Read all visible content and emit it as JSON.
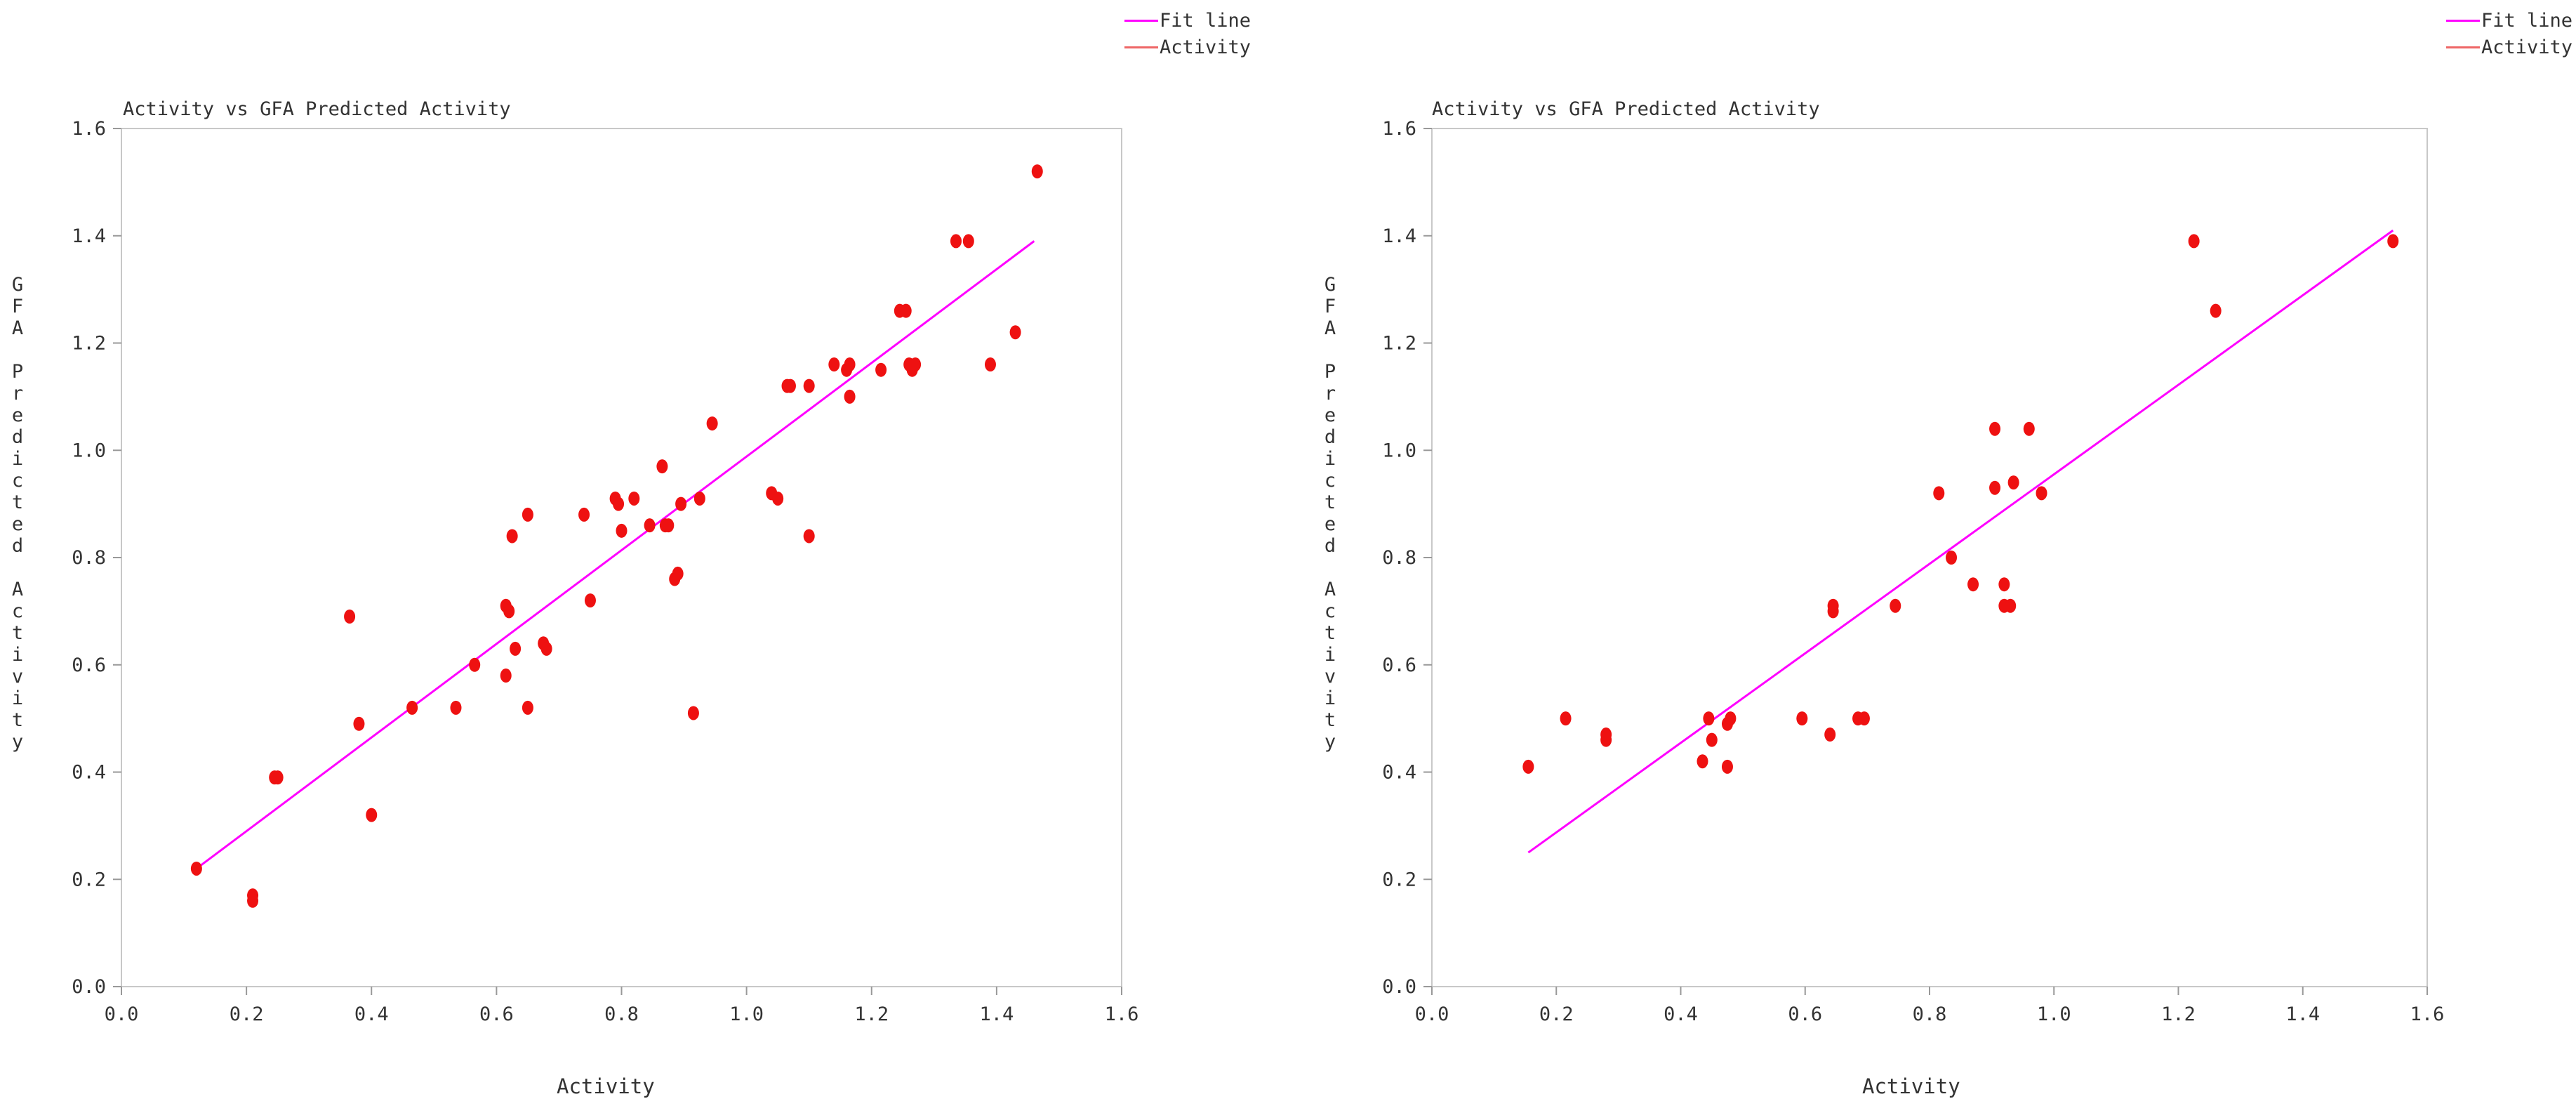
{
  "colors": {
    "fit": "#ff00ff",
    "points": "#ee1111",
    "axis": "#c8c8c8",
    "text": "#333333"
  },
  "legend": {
    "fit_label": "Fit line",
    "activity_label": "Activity"
  },
  "chart_data": [
    {
      "type": "scatter",
      "title": "Activity vs GFA Predicted Activity",
      "xlabel": "Activity",
      "ylabel": "GFA Predicted Activity",
      "xlim": [
        0,
        1.6
      ],
      "ylim": [
        0,
        1.6
      ],
      "xticks": [
        "0.0",
        "0.2",
        "0.4",
        "0.6",
        "0.8",
        "1.0",
        "1.2",
        "1.4",
        "1.6"
      ],
      "yticks": [
        "0.0",
        "0.2",
        "0.4",
        "0.6",
        "0.8",
        "1.0",
        "1.2",
        "1.4",
        "1.6"
      ],
      "legend_position": "top-right",
      "fit_line": {
        "x": [
          0.12,
          1.46
        ],
        "y": [
          0.22,
          1.39
        ]
      },
      "series": [
        {
          "name": "Activity",
          "points": [
            [
              0.12,
              0.22
            ],
            [
              0.21,
              0.17
            ],
            [
              0.21,
              0.16
            ],
            [
              0.245,
              0.39
            ],
            [
              0.25,
              0.39
            ],
            [
              0.365,
              0.69
            ],
            [
              0.38,
              0.49
            ],
            [
              0.4,
              0.32
            ],
            [
              0.465,
              0.52
            ],
            [
              0.535,
              0.52
            ],
            [
              0.565,
              0.6
            ],
            [
              0.615,
              0.58
            ],
            [
              0.615,
              0.71
            ],
            [
              0.62,
              0.7
            ],
            [
              0.625,
              0.84
            ],
            [
              0.63,
              0.63
            ],
            [
              0.65,
              0.52
            ],
            [
              0.65,
              0.88
            ],
            [
              0.675,
              0.64
            ],
            [
              0.68,
              0.63
            ],
            [
              0.74,
              0.88
            ],
            [
              0.75,
              0.72
            ],
            [
              0.79,
              0.91
            ],
            [
              0.795,
              0.9
            ],
            [
              0.8,
              0.85
            ],
            [
              0.82,
              0.91
            ],
            [
              0.845,
              0.86
            ],
            [
              0.865,
              0.97
            ],
            [
              0.87,
              0.86
            ],
            [
              0.875,
              0.86
            ],
            [
              0.885,
              0.76
            ],
            [
              0.89,
              0.77
            ],
            [
              0.895,
              0.9
            ],
            [
              0.915,
              0.51
            ],
            [
              0.925,
              0.91
            ],
            [
              0.945,
              1.05
            ],
            [
              1.04,
              0.92
            ],
            [
              1.05,
              0.91
            ],
            [
              1.065,
              1.12
            ],
            [
              1.07,
              1.12
            ],
            [
              1.1,
              0.84
            ],
            [
              1.1,
              1.12
            ],
            [
              1.14,
              1.16
            ],
            [
              1.16,
              1.15
            ],
            [
              1.165,
              1.1
            ],
            [
              1.165,
              1.16
            ],
            [
              1.215,
              1.15
            ],
            [
              1.245,
              1.26
            ],
            [
              1.255,
              1.26
            ],
            [
              1.26,
              1.16
            ],
            [
              1.265,
              1.15
            ],
            [
              1.27,
              1.16
            ],
            [
              1.335,
              1.39
            ],
            [
              1.355,
              1.39
            ],
            [
              1.39,
              1.16
            ],
            [
              1.43,
              1.22
            ],
            [
              1.465,
              1.52
            ]
          ]
        }
      ]
    },
    {
      "type": "scatter",
      "title": "Activity vs GFA Predicted Activity",
      "xlabel": "Activity",
      "ylabel": "GFA Predicted Activity",
      "xlim": [
        0,
        1.6
      ],
      "ylim": [
        0,
        1.6
      ],
      "xticks": [
        "0.0",
        "0.2",
        "0.4",
        "0.6",
        "0.8",
        "1.0",
        "1.2",
        "1.4",
        "1.6"
      ],
      "yticks": [
        "0.0",
        "0.2",
        "0.4",
        "0.6",
        "0.8",
        "1.0",
        "1.2",
        "1.4",
        "1.6"
      ],
      "legend_position": "top-right",
      "fit_line": {
        "x": [
          0.155,
          1.545
        ],
        "y": [
          0.25,
          1.41
        ]
      },
      "series": [
        {
          "name": "Activity",
          "points": [
            [
              0.155,
              0.41
            ],
            [
              0.215,
              0.5
            ],
            [
              0.28,
              0.46
            ],
            [
              0.28,
              0.47
            ],
            [
              0.435,
              0.42
            ],
            [
              0.445,
              0.5
            ],
            [
              0.45,
              0.46
            ],
            [
              0.475,
              0.41
            ],
            [
              0.475,
              0.49
            ],
            [
              0.48,
              0.5
            ],
            [
              0.595,
              0.5
            ],
            [
              0.64,
              0.47
            ],
            [
              0.645,
              0.7
            ],
            [
              0.645,
              0.71
            ],
            [
              0.685,
              0.5
            ],
            [
              0.695,
              0.5
            ],
            [
              0.745,
              0.71
            ],
            [
              0.815,
              0.92
            ],
            [
              0.835,
              0.8
            ],
            [
              0.87,
              0.75
            ],
            [
              0.905,
              1.04
            ],
            [
              0.905,
              0.93
            ],
            [
              0.92,
              0.75
            ],
            [
              0.92,
              0.71
            ],
            [
              0.93,
              0.71
            ],
            [
              0.935,
              0.94
            ],
            [
              0.96,
              1.04
            ],
            [
              0.98,
              0.92
            ],
            [
              1.225,
              1.39
            ],
            [
              1.26,
              1.26
            ],
            [
              1.545,
              1.39
            ]
          ]
        }
      ]
    }
  ]
}
